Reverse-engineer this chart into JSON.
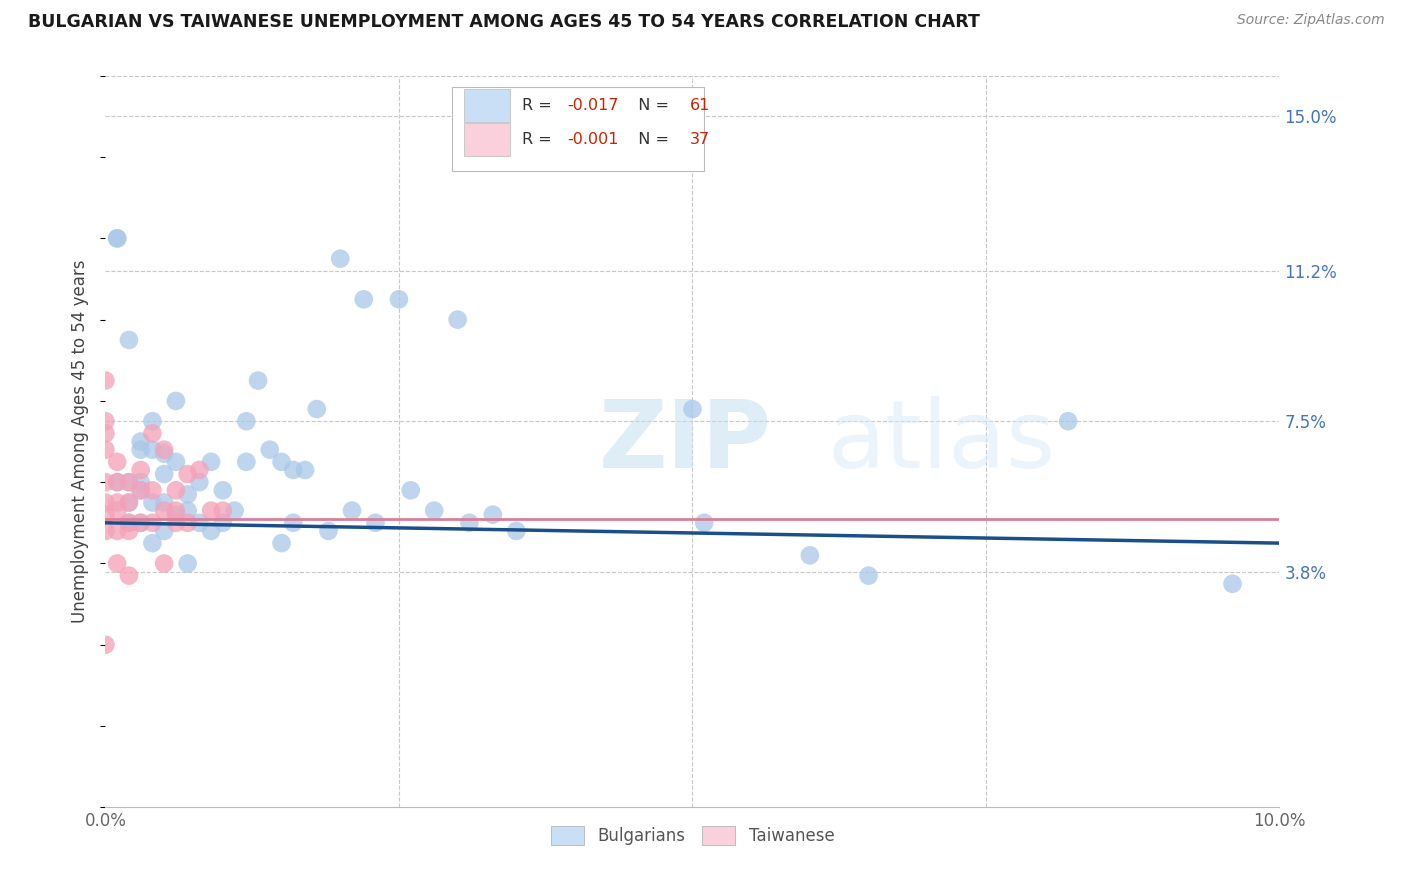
{
  "title": "BULGARIAN VS TAIWANESE UNEMPLOYMENT AMONG AGES 45 TO 54 YEARS CORRELATION CHART",
  "source": "Source: ZipAtlas.com",
  "ylabel_label": "Unemployment Among Ages 45 to 54 years",
  "right_yticks": [
    3.8,
    7.5,
    11.2,
    15.0
  ],
  "right_ytick_labels": [
    "3.8%",
    "7.5%",
    "11.2%",
    "15.0%"
  ],
  "xlim": [
    0.0,
    0.1
  ],
  "ylim": [
    -0.02,
    0.16
  ],
  "bulgarians_R": -0.017,
  "bulgarians_N": 61,
  "taiwanese_R": -0.001,
  "taiwanese_N": 37,
  "bulgarian_color": "#a8c8e8",
  "taiwanese_color": "#f4a0b8",
  "legend_bulgarian_fill": "#c8dff5",
  "legend_taiwanese_fill": "#fad0dc",
  "trend_blue": "#1a4f8a",
  "trend_pink": "#d88098",
  "bulgarians_x": [
    0.001,
    0.001,
    0.001,
    0.002,
    0.002,
    0.002,
    0.002,
    0.003,
    0.003,
    0.003,
    0.003,
    0.003,
    0.004,
    0.004,
    0.004,
    0.004,
    0.005,
    0.005,
    0.005,
    0.005,
    0.006,
    0.006,
    0.006,
    0.007,
    0.007,
    0.007,
    0.008,
    0.008,
    0.009,
    0.009,
    0.01,
    0.01,
    0.011,
    0.012,
    0.012,
    0.013,
    0.014,
    0.015,
    0.015,
    0.016,
    0.016,
    0.017,
    0.018,
    0.019,
    0.02,
    0.021,
    0.022,
    0.023,
    0.025,
    0.026,
    0.028,
    0.03,
    0.031,
    0.033,
    0.035,
    0.05,
    0.051,
    0.06,
    0.065,
    0.082,
    0.096
  ],
  "bulgarians_y": [
    0.12,
    0.12,
    0.06,
    0.095,
    0.06,
    0.055,
    0.05,
    0.07,
    0.068,
    0.06,
    0.058,
    0.05,
    0.075,
    0.068,
    0.055,
    0.045,
    0.067,
    0.062,
    0.055,
    0.048,
    0.08,
    0.065,
    0.052,
    0.057,
    0.053,
    0.04,
    0.06,
    0.05,
    0.065,
    0.048,
    0.058,
    0.05,
    0.053,
    0.075,
    0.065,
    0.085,
    0.068,
    0.065,
    0.045,
    0.063,
    0.05,
    0.063,
    0.078,
    0.048,
    0.115,
    0.053,
    0.105,
    0.05,
    0.105,
    0.058,
    0.053,
    0.1,
    0.05,
    0.052,
    0.048,
    0.078,
    0.05,
    0.042,
    0.037,
    0.075,
    0.035
  ],
  "taiwanese_x": [
    0.0,
    0.0,
    0.0,
    0.0,
    0.0,
    0.0,
    0.0,
    0.0,
    0.0,
    0.001,
    0.001,
    0.001,
    0.001,
    0.001,
    0.001,
    0.002,
    0.002,
    0.002,
    0.002,
    0.002,
    0.003,
    0.003,
    0.003,
    0.004,
    0.004,
    0.004,
    0.005,
    0.005,
    0.005,
    0.006,
    0.006,
    0.006,
    0.007,
    0.007,
    0.008,
    0.009,
    0.01
  ],
  "taiwanese_y": [
    0.085,
    0.075,
    0.072,
    0.068,
    0.06,
    0.055,
    0.052,
    0.048,
    0.02,
    0.065,
    0.06,
    0.055,
    0.053,
    0.048,
    0.04,
    0.06,
    0.055,
    0.05,
    0.048,
    0.037,
    0.063,
    0.058,
    0.05,
    0.072,
    0.058,
    0.05,
    0.068,
    0.053,
    0.04,
    0.058,
    0.053,
    0.05,
    0.062,
    0.05,
    0.063,
    0.053,
    0.053
  ],
  "watermark_zip": "ZIP",
  "watermark_atlas": "atlas",
  "background_color": "#ffffff",
  "grid_color": "#c8c8c8"
}
